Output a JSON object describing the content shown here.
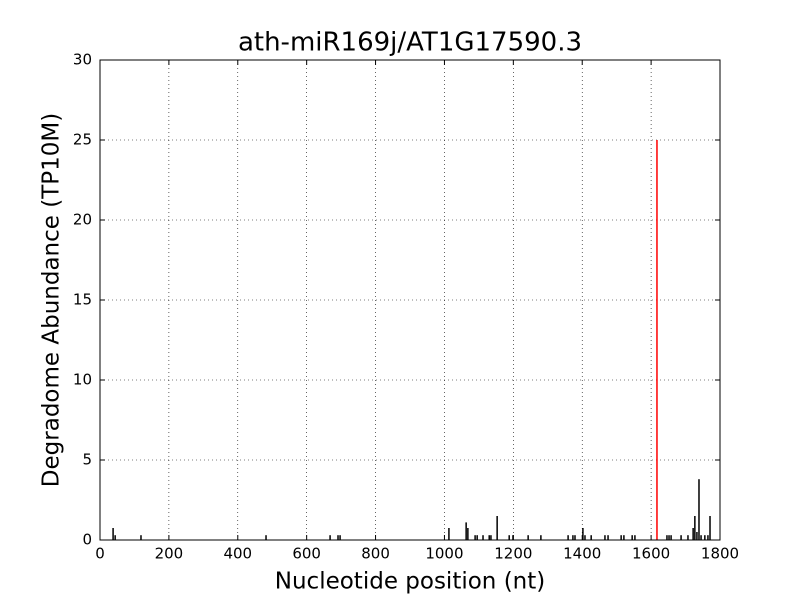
{
  "chart_data": {
    "type": "bar",
    "title": "ath-miR169j/AT1G17590.3",
    "x_label": "Nucleotide position (nt)",
    "y_label": "Degradome Abundance (TP10M)",
    "xlim": [
      0,
      1800
    ],
    "xticks": [
      0,
      200,
      400,
      600,
      800,
      1000,
      1200,
      1400,
      1600,
      1800
    ],
    "ylim": [
      0,
      30
    ],
    "yticks": [
      0,
      5,
      10,
      15,
      20,
      25,
      30
    ],
    "grid": true,
    "series": [
      {
        "color": "#000000",
        "x": [
          38,
          44,
          119,
          482,
          668,
          691,
          697,
          1013,
          1063,
          1068,
          1089,
          1095,
          1112,
          1130,
          1135,
          1153,
          1188,
          1199,
          1243,
          1280,
          1359,
          1373,
          1379,
          1402,
          1408,
          1426,
          1466,
          1475,
          1513,
          1521,
          1545,
          1553,
          1646,
          1652,
          1658,
          1687,
          1707,
          1722,
          1727,
          1733,
          1739,
          1745,
          1756,
          1765,
          1771
        ],
        "values": [
          0.75,
          0.3,
          0.3,
          0.3,
          0.3,
          0.3,
          0.3,
          0.75,
          1.1,
          0.75,
          0.3,
          0.3,
          0.3,
          0.3,
          0.3,
          1.5,
          0.3,
          0.3,
          0.3,
          0.3,
          0.3,
          0.3,
          0.3,
          0.75,
          0.3,
          0.3,
          0.3,
          0.3,
          0.3,
          0.3,
          0.3,
          0.3,
          0.3,
          0.3,
          0.3,
          0.3,
          0.3,
          0.75,
          1.5,
          0.5,
          3.8,
          0.3,
          0.3,
          0.3,
          1.5
        ]
      },
      {
        "color": "#ff0000",
        "x": [
          1617
        ],
        "values": [
          25
        ]
      }
    ]
  }
}
